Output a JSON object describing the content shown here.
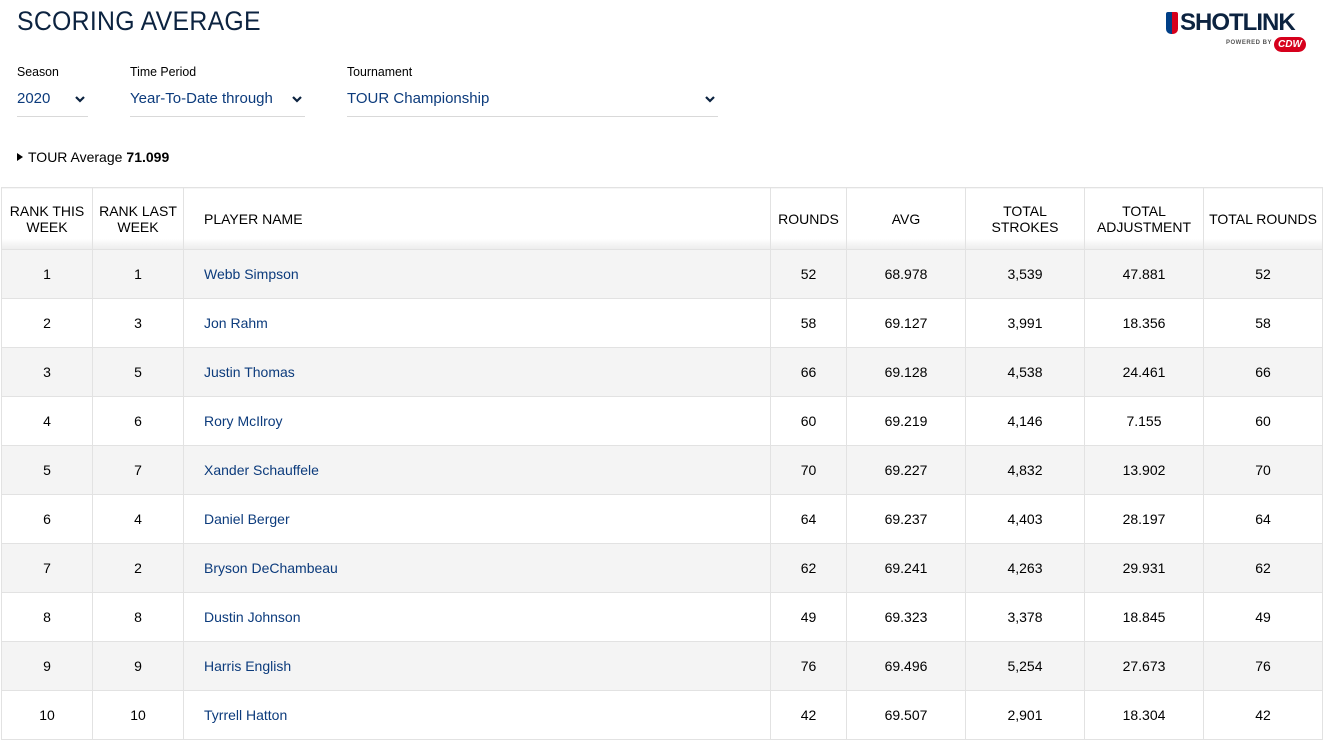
{
  "header": {
    "title": "SCORING AVERAGE",
    "logo": {
      "word": "SHOTLINK",
      "powered": "POWERED BY",
      "sponsor": "CDW"
    }
  },
  "filters": {
    "season": {
      "label": "Season",
      "value": "2020"
    },
    "time_period": {
      "label": "Time Period",
      "value": "Year-To-Date through"
    },
    "tournament": {
      "label": "Tournament",
      "value": "TOUR Championship"
    }
  },
  "tour_average": {
    "label": "TOUR Average",
    "value": "71.099"
  },
  "table": {
    "columns": [
      "RANK THIS WEEK",
      "RANK LAST WEEK",
      "PLAYER NAME",
      "ROUNDS",
      "AVG",
      "TOTAL STROKES",
      "TOTAL ADJUSTMENT",
      "TOTAL ROUNDS"
    ],
    "rows": [
      [
        "1",
        "1",
        "Webb Simpson",
        "52",
        "68.978",
        "3,539",
        "47.881",
        "52"
      ],
      [
        "2",
        "3",
        "Jon Rahm",
        "58",
        "69.127",
        "3,991",
        "18.356",
        "58"
      ],
      [
        "3",
        "5",
        "Justin Thomas",
        "66",
        "69.128",
        "4,538",
        "24.461",
        "66"
      ],
      [
        "4",
        "6",
        "Rory McIlroy",
        "60",
        "69.219",
        "4,146",
        "7.155",
        "60"
      ],
      [
        "5",
        "7",
        "Xander Schauffele",
        "70",
        "69.227",
        "4,832",
        "13.902",
        "70"
      ],
      [
        "6",
        "4",
        "Daniel Berger",
        "64",
        "69.237",
        "4,403",
        "28.197",
        "64"
      ],
      [
        "7",
        "2",
        "Bryson DeChambeau",
        "62",
        "69.241",
        "4,263",
        "29.931",
        "62"
      ],
      [
        "8",
        "8",
        "Dustin Johnson",
        "49",
        "69.323",
        "3,378",
        "18.845",
        "49"
      ],
      [
        "9",
        "9",
        "Harris English",
        "76",
        "69.496",
        "5,254",
        "27.673",
        "76"
      ],
      [
        "10",
        "10",
        "Tyrrell Hatton",
        "42",
        "69.507",
        "2,901",
        "18.304",
        "42"
      ]
    ]
  },
  "colors": {
    "title": "#0c2340",
    "link": "#0c3b7c",
    "row_alt": "#f4f4f4",
    "brand_red": "#d6001c"
  }
}
